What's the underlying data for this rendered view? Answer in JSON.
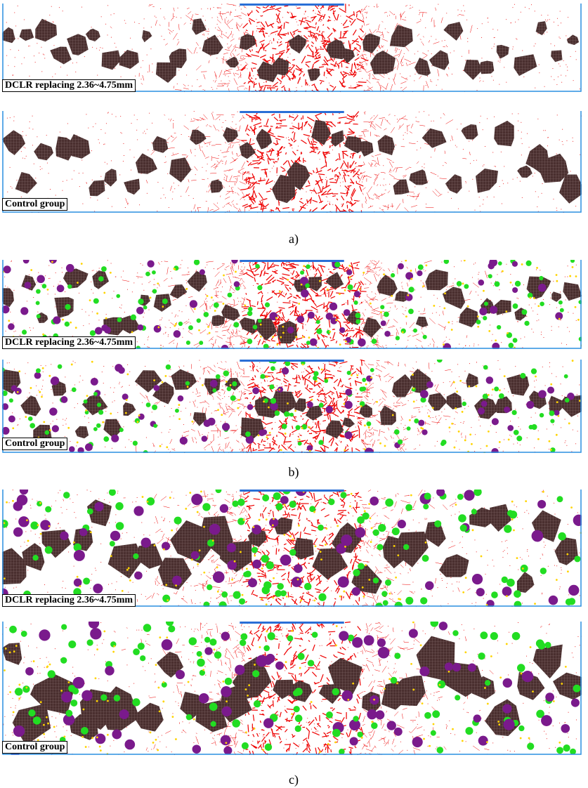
{
  "panels": [
    {
      "label": "a)",
      "images": [
        {
          "caption": "DCLR replacing 2.36~4.75mm"
        },
        {
          "caption": "Control group"
        }
      ]
    },
    {
      "label": "b)",
      "images": [
        {
          "caption": "DCLR replacing 2.36~4.75mm"
        },
        {
          "caption": "Control group"
        }
      ]
    },
    {
      "label": "c)",
      "images": [
        {
          "caption": "DCLR replacing 2.36~4.75mm"
        },
        {
          "caption": "Control group"
        }
      ]
    }
  ]
}
